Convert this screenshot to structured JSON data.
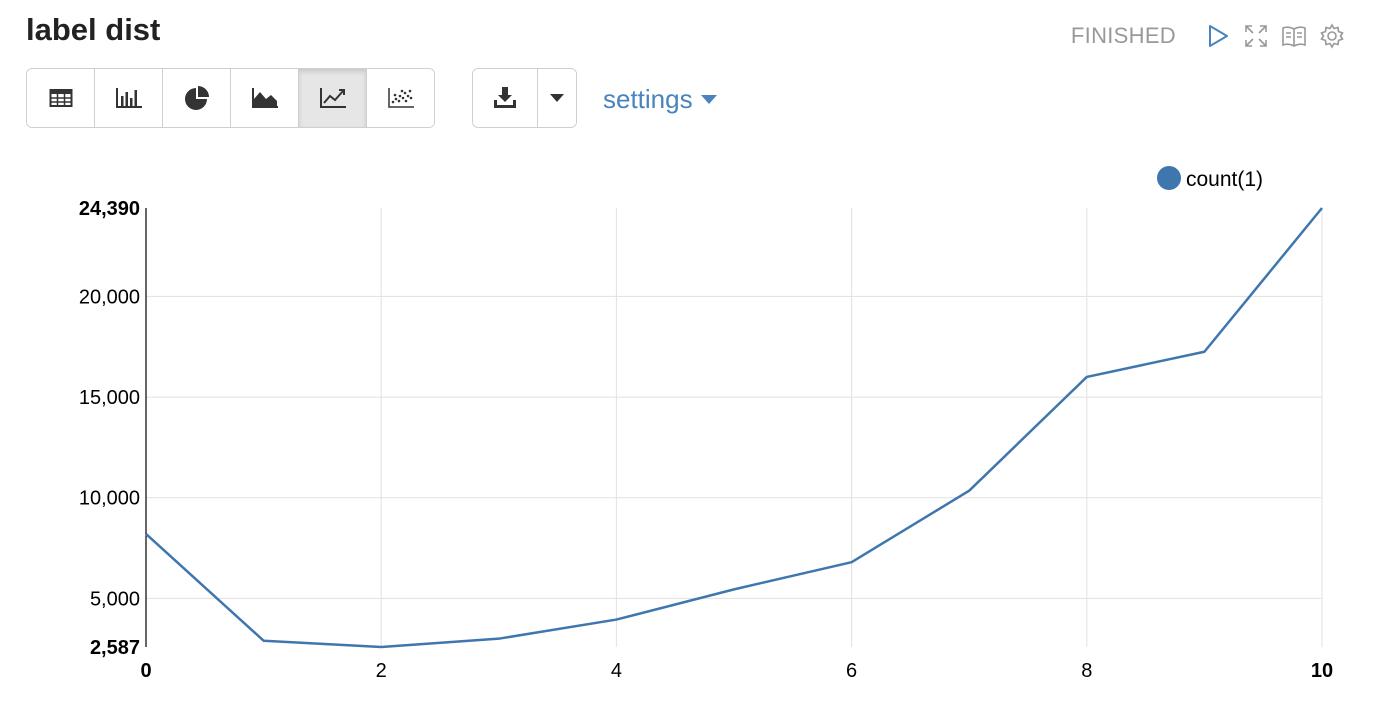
{
  "paragraph": {
    "title": "label dist",
    "status": "FINISHED"
  },
  "header_icons": [
    "play-icon",
    "fullscreen-icon",
    "book-icon",
    "gear-icon"
  ],
  "toolbar": {
    "viz_buttons": [
      {
        "name": "table-view-button",
        "icon": "table-icon",
        "active": false
      },
      {
        "name": "bar-chart-button",
        "icon": "bar-chart-icon",
        "active": false
      },
      {
        "name": "pie-chart-button",
        "icon": "pie-chart-icon",
        "active": false
      },
      {
        "name": "area-chart-button",
        "icon": "area-chart-icon",
        "active": false
      },
      {
        "name": "line-chart-button",
        "icon": "line-chart-icon",
        "active": true
      },
      {
        "name": "scatter-chart-button",
        "icon": "scatter-chart-icon",
        "active": false
      }
    ],
    "download_icon": "download-icon",
    "settings_label": "settings"
  },
  "colors": {
    "line": "#3f76ae",
    "grid": "#e1e1e1",
    "settings": "#4a83bd"
  },
  "chart_data": {
    "type": "line",
    "legend": {
      "label": "count(1)",
      "placement": "top-right"
    },
    "x": [
      0,
      1,
      2,
      3,
      4,
      5,
      6,
      7,
      8,
      9,
      10
    ],
    "series": [
      {
        "name": "count(1)",
        "values": [
          8200,
          2900,
          2587,
          3000,
          3950,
          5450,
          6800,
          10350,
          16000,
          17250,
          24390
        ]
      }
    ],
    "xlim": [
      0,
      10
    ],
    "ylim": [
      2587,
      24390
    ],
    "x_ticks": [
      "0",
      "2",
      "4",
      "6",
      "8",
      "10"
    ],
    "y_ticks": [
      {
        "value": 2587,
        "label": "2,587",
        "bold": true
      },
      {
        "value": 5000,
        "label": "5,000",
        "bold": false
      },
      {
        "value": 10000,
        "label": "10,000",
        "bold": false
      },
      {
        "value": 15000,
        "label": "15,000",
        "bold": false
      },
      {
        "value": 20000,
        "label": "20,000",
        "bold": false
      },
      {
        "value": 24390,
        "label": "24,390",
        "bold": true
      }
    ],
    "grid": true
  }
}
